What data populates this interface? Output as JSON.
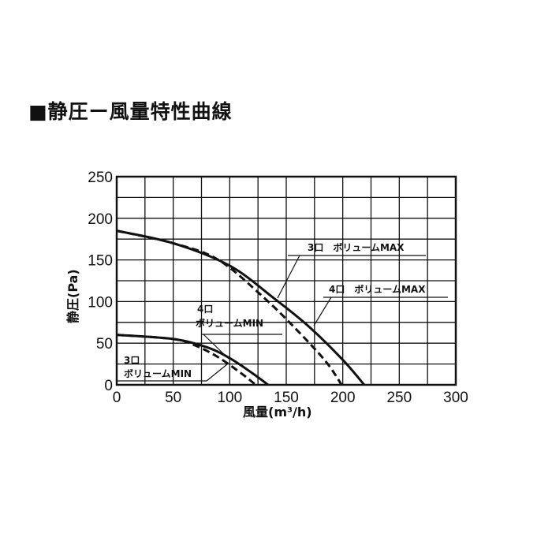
{
  "title": "■静圧ー風量特性曲線",
  "chart_data": {
    "type": "line",
    "title": "■静圧ー風量特性曲線",
    "xlabel": "風量(m³/h)",
    "ylabel": "静圧(Pa)",
    "xlim": [
      0,
      300
    ],
    "ylim": [
      0,
      250
    ],
    "xticks": [
      0,
      50,
      100,
      150,
      200,
      250,
      300
    ],
    "yticks": [
      0,
      50,
      100,
      150,
      200,
      250
    ],
    "grid": true,
    "grid_step": 25,
    "series": [
      {
        "name": "4口 ボリュームMAX",
        "style": "solid",
        "x": [
          0,
          50,
          100,
          140,
          170,
          200,
          219
        ],
        "y": [
          185,
          170,
          143,
          103,
          70,
          30,
          0
        ]
      },
      {
        "name": "3口 ボリュームMAX",
        "style": "dashed",
        "x": [
          0,
          50,
          90,
          130,
          160,
          185,
          199
        ],
        "y": [
          185,
          170,
          150,
          105,
          65,
          28,
          0
        ]
      },
      {
        "name": "4口 ボリュームMIN",
        "style": "solid",
        "x": [
          0,
          50,
          80,
          100,
          120,
          134
        ],
        "y": [
          60,
          55,
          45,
          32,
          14,
          0
        ]
      },
      {
        "name": "3口 ボリュームMIN",
        "style": "dashed",
        "x": [
          0,
          50,
          70,
          90,
          110,
          123
        ],
        "y": [
          60,
          55,
          47,
          33,
          14,
          0
        ]
      }
    ],
    "annotations": {
      "max3": "3口　ボリュームMAX",
      "max4": "4口　ボリュームMAX",
      "min4_line1": "4口",
      "min4_line2": "ボリュームMIN",
      "min3_line1": "3口",
      "min3_line2": "ボリュームMIN"
    },
    "color": "#111111"
  }
}
